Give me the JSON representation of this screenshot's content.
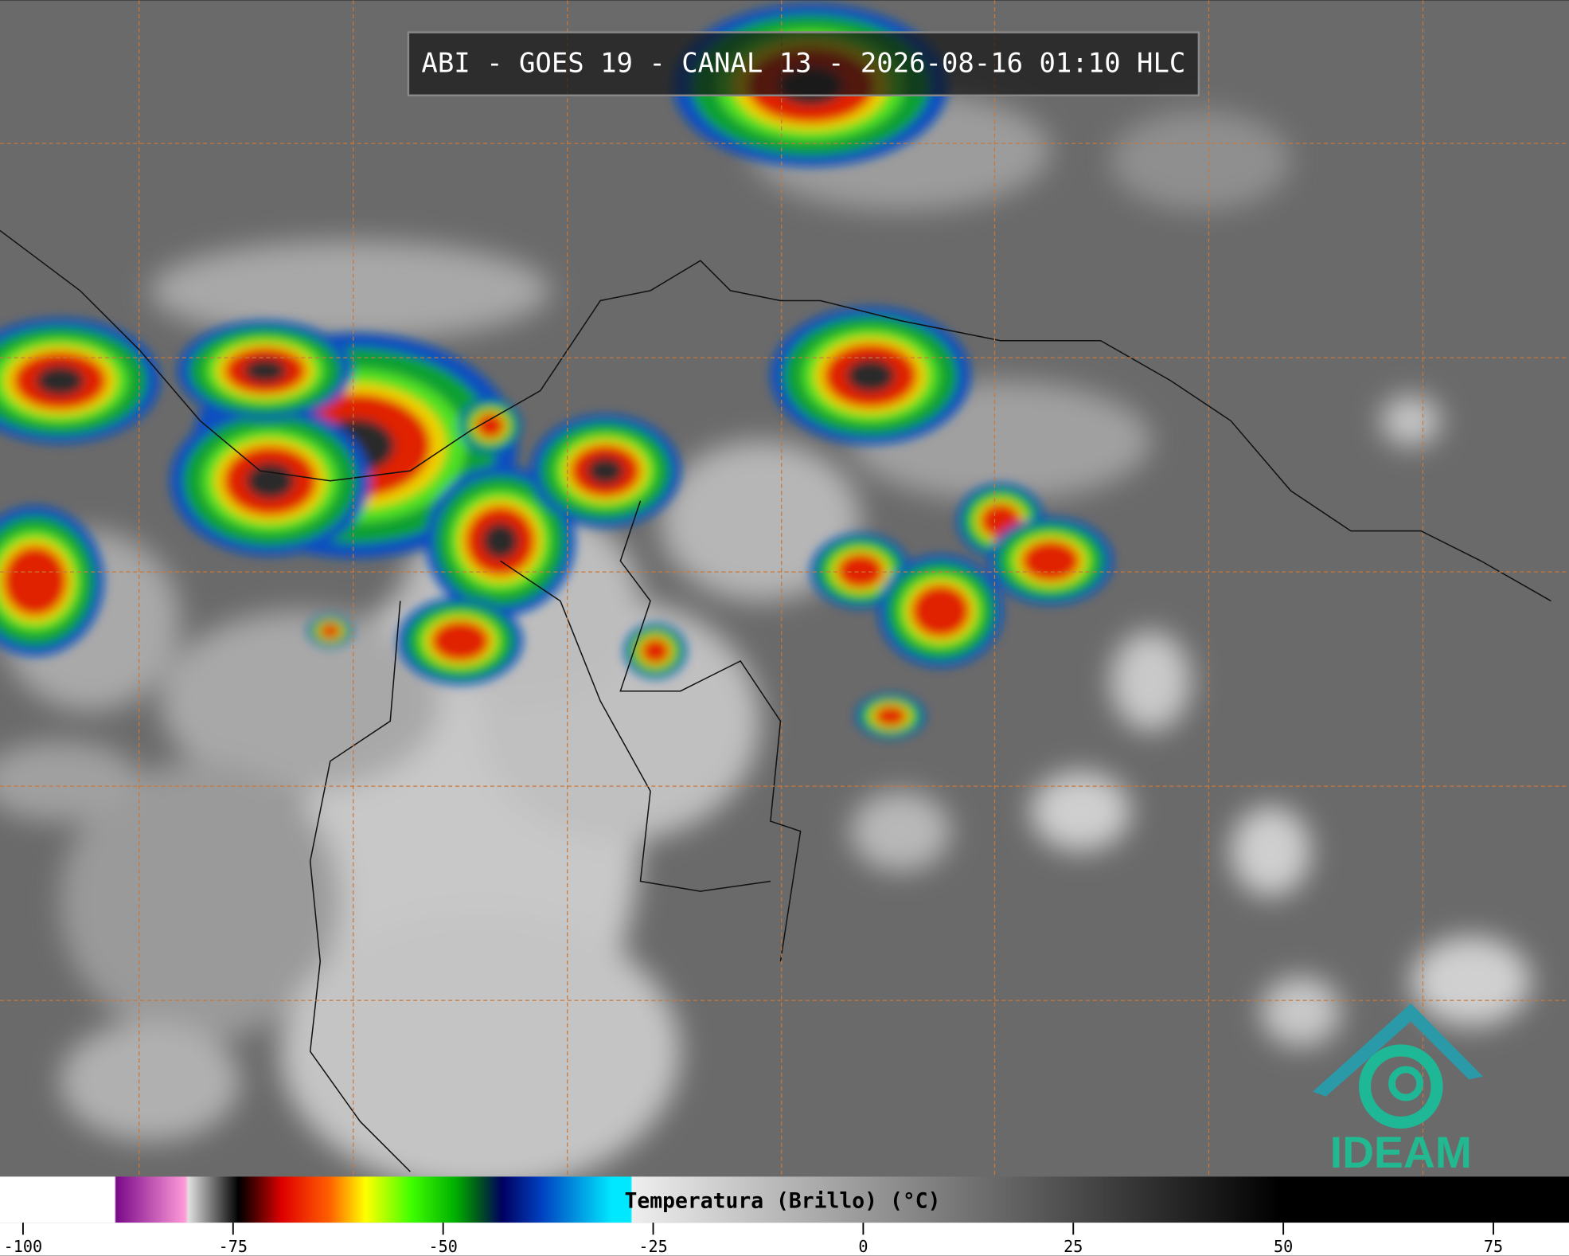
{
  "title": "ABI - GOES 19 - CANAL 13 - 2026-08-16 01:10 HLC",
  "colorbar": {
    "label": "Temperatura (Brillo) (°C)",
    "range": [
      -102.74,
      84
    ],
    "ticks": [
      -100,
      -75,
      -50,
      -25,
      0,
      25,
      50,
      75
    ]
  },
  "logo": "IDEAM"
}
